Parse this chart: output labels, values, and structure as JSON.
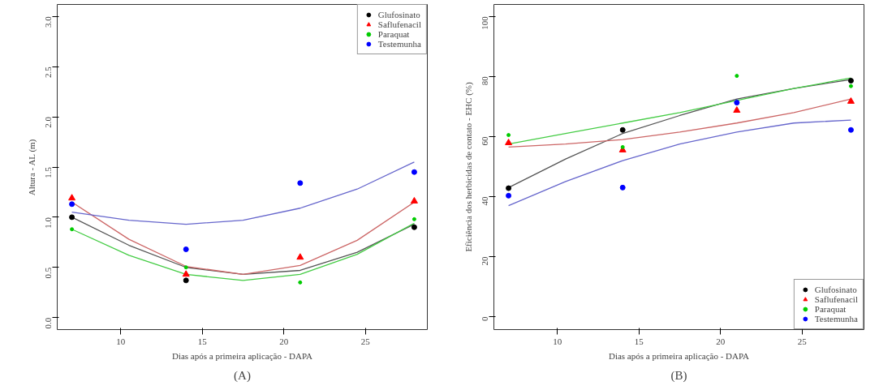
{
  "chart_data": [
    {
      "type": "scatter",
      "xlabel": "Dias após a primeira aplicação - DAPA",
      "ylabel": "Altura - AL (m)",
      "annotations": [
        "(A)"
      ],
      "xlim": [
        6.1,
        28.8
      ],
      "ylim": [
        -0.12,
        3.12
      ],
      "xticks": [
        10,
        15,
        20,
        25
      ],
      "yticks": [
        {
          "value": 0,
          "label": "0.0"
        },
        {
          "value": 0.5,
          "label": "0.5"
        },
        {
          "value": 1,
          "label": "1.0"
        },
        {
          "value": 1.5,
          "label": "1.5"
        },
        {
          "value": 2,
          "label": "2.0"
        },
        {
          "value": 2.5,
          "label": "2.5"
        },
        {
          "value": 3,
          "label": "3.0"
        }
      ],
      "grid": false,
      "legend": "top right",
      "x": [
        7,
        14,
        21,
        28
      ],
      "series": [
        {
          "name": "Glufosinato",
          "color": "#000000",
          "marker": "circle",
          "values": [
            1.0,
            0.37,
            null,
            0.9
          ]
        },
        {
          "name": "Saflufenacil",
          "color": "#ff0000",
          "marker": "triangle",
          "values": [
            1.19,
            0.43,
            0.6,
            1.16
          ]
        },
        {
          "name": "Paraquat",
          "color": "#00cc00",
          "marker": "dot",
          "values": [
            0.88,
            0.5,
            0.35,
            0.98
          ]
        },
        {
          "name": "Testemunha",
          "color": "#0000ff",
          "marker": "circle",
          "values": [
            1.13,
            0.68,
            1.34,
            1.45
          ]
        },
        {
          "type": "line",
          "color": "#555555",
          "x": [
            7,
            10.5,
            14,
            17.5,
            21,
            24.5,
            28
          ],
          "values": [
            1.0,
            0.72,
            0.5,
            0.43,
            0.47,
            0.65,
            0.93
          ]
        },
        {
          "type": "line",
          "color": "#cc6666",
          "x": [
            7,
            10.5,
            14,
            17.5,
            21,
            24.5,
            28
          ],
          "values": [
            1.15,
            0.78,
            0.51,
            0.43,
            0.52,
            0.77,
            1.15
          ]
        },
        {
          "type": "line",
          "color": "#44cc44",
          "x": [
            7,
            10.5,
            14,
            17.5,
            21,
            24.5,
            28
          ],
          "values": [
            0.88,
            0.62,
            0.43,
            0.37,
            0.43,
            0.63,
            0.94
          ]
        },
        {
          "type": "line",
          "color": "#6666cc",
          "x": [
            7,
            10.5,
            14,
            17.5,
            21,
            24.5,
            28
          ],
          "values": [
            1.05,
            0.97,
            0.93,
            0.97,
            1.09,
            1.28,
            1.55
          ]
        }
      ]
    },
    {
      "type": "scatter",
      "xlabel": "Dias após a primeira aplicação - DAPA",
      "ylabel": "Eficiência dos herbicidas de contato - EHC (%)",
      "annotations": [
        "(B)"
      ],
      "xlim": [
        6.1,
        28.8
      ],
      "ylim": [
        -4.3,
        104
      ],
      "xticks": [
        10,
        15,
        20,
        25
      ],
      "yticks": [
        0,
        20,
        40,
        60,
        80,
        100
      ],
      "grid": false,
      "legend": "bottom right",
      "x": [
        7,
        14,
        21,
        28
      ],
      "series": [
        {
          "name": "Glufosinato",
          "color": "#000000",
          "marker": "circle",
          "values": [
            42.8,
            62.2,
            null,
            78.6
          ]
        },
        {
          "name": "Saflufenacil",
          "color": "#ff0000",
          "marker": "triangle",
          "values": [
            57.9,
            55.5,
            68.7,
            71.7
          ]
        },
        {
          "name": "Paraquat",
          "color": "#00cc00",
          "marker": "dot",
          "values": [
            60.5,
            56.5,
            80.2,
            76.8
          ]
        },
        {
          "name": "Testemunha",
          "color": "#0000ff",
          "marker": "circle",
          "values": [
            40.3,
            43,
            71.3,
            62.2
          ]
        },
        {
          "type": "line",
          "color": "#555555",
          "x": [
            7,
            10.5,
            14,
            17.5,
            21,
            24.5,
            28
          ],
          "values": [
            43,
            52.5,
            61,
            67,
            72.5,
            76,
            79
          ]
        },
        {
          "type": "line",
          "color": "#cc6666",
          "x": [
            7,
            10.5,
            14,
            17.5,
            21,
            24.5,
            28
          ],
          "values": [
            56.5,
            57.5,
            59,
            61.5,
            64.5,
            68,
            72.5
          ]
        },
        {
          "type": "line",
          "color": "#44cc44",
          "x": [
            7,
            10.5,
            14,
            17.5,
            21,
            24.5,
            28
          ],
          "values": [
            57.5,
            61,
            64.5,
            68,
            72,
            76,
            79.5
          ]
        },
        {
          "type": "line",
          "color": "#6666cc",
          "x": [
            7,
            10.5,
            14,
            17.5,
            21,
            24.5,
            28
          ],
          "values": [
            37,
            45,
            52,
            57.5,
            61.5,
            64.5,
            65.5
          ]
        }
      ]
    }
  ]
}
